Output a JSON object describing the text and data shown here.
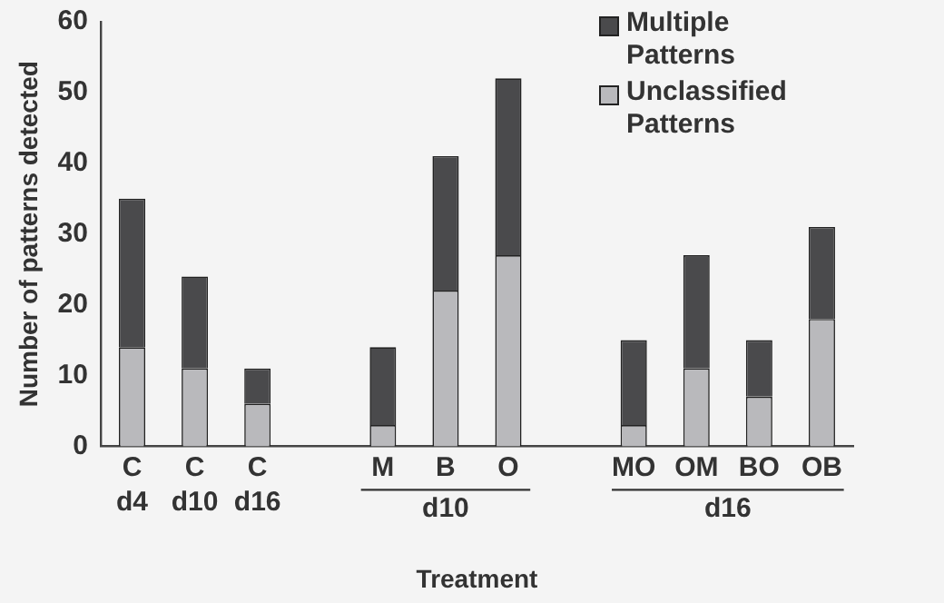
{
  "chart_data": {
    "type": "bar",
    "stacked": true,
    "xlabel": "Treatment",
    "ylabel": "Number of patterns detected",
    "categories": [
      "C\nd4",
      "C\nd10",
      "C\nd16",
      null,
      "M",
      "B",
      "O",
      null,
      "MO",
      "OM",
      "BO",
      "OB"
    ],
    "series": [
      {
        "name": "Unclassified\nPatterns",
        "color": "#b9b9bc",
        "values": [
          14,
          11,
          6,
          null,
          3,
          22,
          27,
          null,
          3,
          11,
          7,
          18
        ]
      },
      {
        "name": "Multiple\nPatterns",
        "color": "#4a4a4c",
        "values": [
          21,
          13,
          5,
          null,
          11,
          19,
          25,
          null,
          12,
          16,
          8,
          13
        ]
      }
    ],
    "annotations": [
      "d10",
      "d16"
    ],
    "ylim": [
      0,
      60
    ],
    "yticks": [
      0,
      10,
      20,
      30,
      40,
      50,
      60
    ],
    "grid": false,
    "legend": "top right"
  }
}
